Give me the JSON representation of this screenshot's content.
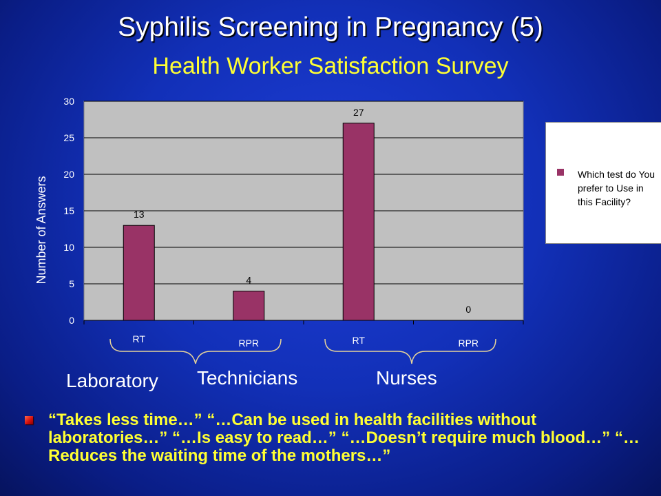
{
  "slide": {
    "title": "Syphilis Screening in Pregnancy (5)",
    "subtitle": "Health Worker Satisfaction Survey",
    "group_labels": [
      "Laboratory",
      "Technicians",
      "Nurses"
    ],
    "quote": "“Takes less time…” “…Can be used in health facilities without laboratories…” “…Is easy to read…” “…Doesn’t require much blood…” “…Reduces the waiting time of the mothers…”"
  },
  "chart_data": {
    "type": "bar",
    "categories": [
      "RT",
      "RPR",
      "RT",
      "RPR"
    ],
    "series": [
      {
        "name": "Which test do You prefer to Use in this Facility?",
        "values": [
          13,
          4,
          27,
          0
        ],
        "color": "#993366"
      }
    ],
    "ylabel": "Number of Answers",
    "ylim": [
      0,
      30
    ],
    "yticks": [
      0,
      5,
      10,
      15,
      20,
      25,
      30
    ],
    "data_labels": [
      "13",
      "4",
      "27",
      "0"
    ],
    "grid": true,
    "legend": "right",
    "plot_background": "#c0c0c0"
  }
}
